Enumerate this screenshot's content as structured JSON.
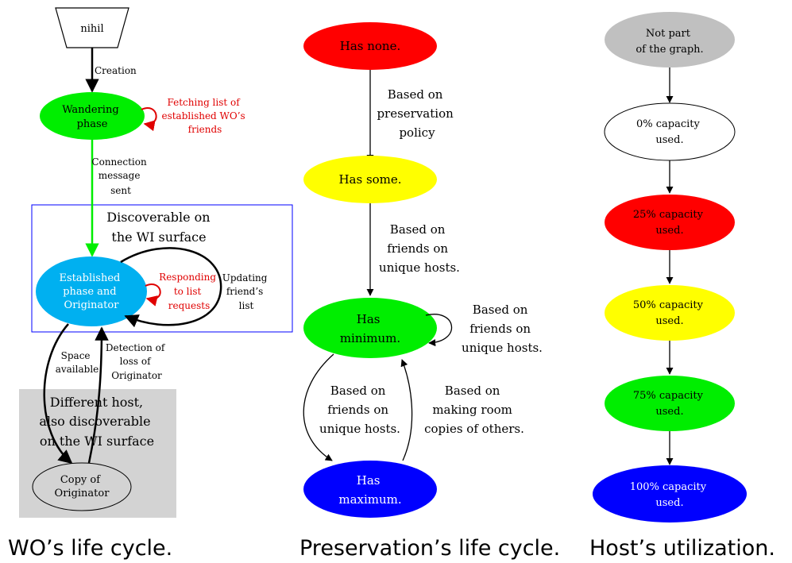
{
  "wo": {
    "nihil": "nihil",
    "creation": "Creation",
    "wandering": [
      "Wandering",
      "phase"
    ],
    "fetching": [
      "Fetching list of",
      "established WO’s",
      "friends"
    ],
    "connection": [
      "Connection",
      "message",
      "sent"
    ],
    "cluster_title": [
      "Discoverable on",
      "the WI surface"
    ],
    "established": [
      "Established",
      "phase and",
      "Originator"
    ],
    "responding": [
      "Responding",
      "to list",
      "requests"
    ],
    "updating": [
      "Updating",
      "friend’s",
      "list"
    ],
    "space": [
      "Space",
      "available"
    ],
    "detection": [
      "Detection of",
      "loss of",
      "Originator"
    ],
    "host_title": [
      "Different host,",
      "also discoverable",
      "on the WI surface"
    ],
    "copy": [
      "Copy of",
      "Originator"
    ],
    "caption": "WO’s life cycle."
  },
  "preservation": {
    "none": "Has none.",
    "policy": [
      "Based on",
      "preservation",
      "policy"
    ],
    "some": "Has some.",
    "friends1": [
      "Based on",
      "friends on",
      "unique hosts."
    ],
    "minimum": [
      "Has",
      "minimum."
    ],
    "friends_loop": [
      "Based on",
      "friends on",
      "unique hosts."
    ],
    "friends2": [
      "Based on",
      "friends on",
      "unique hosts."
    ],
    "making_room": [
      "Based on",
      "making room",
      "copies of others."
    ],
    "maximum": [
      "Has",
      "maximum."
    ],
    "caption": "Preservation’s life cycle."
  },
  "host": {
    "not_part": [
      "Not part",
      "of the graph."
    ],
    "c0": [
      "0% capacity",
      "used."
    ],
    "c25": [
      "25% capacity",
      "used."
    ],
    "c50": [
      "50% capacity",
      "used."
    ],
    "c75": [
      "75% capacity",
      "used."
    ],
    "c100": [
      "100% capacity",
      "used."
    ],
    "caption": "Host’s utilization."
  },
  "colors": {
    "green": "#00ee00",
    "cyan": "#00b0f0",
    "red": "#ff0000",
    "yellow": "#ffff00",
    "blue": "#0000ff",
    "gray": "#c0c0c0",
    "gray_box": "#d3d3d3",
    "cluster_border": "#0000ff",
    "red_text": "#e00000"
  }
}
